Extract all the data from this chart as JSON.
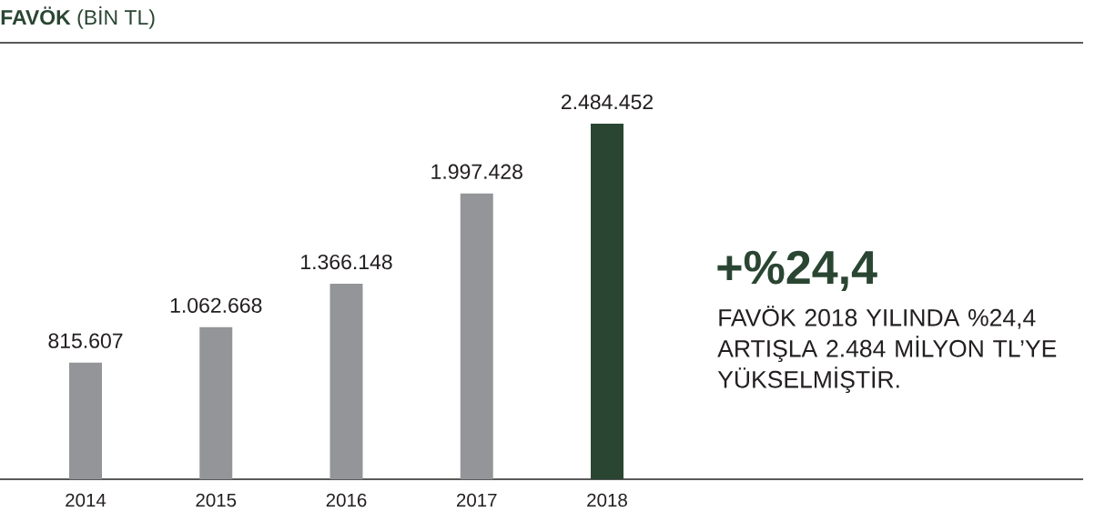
{
  "chart_data": {
    "type": "bar",
    "title": "**FAVÖK** (BİN TL)",
    "categories": [
      "2014",
      "2015",
      "2016",
      "2017",
      "2018"
    ],
    "values": [
      815607,
      1062668,
      1366148,
      1997428,
      2484452
    ],
    "colors": [
      "#939598",
      "#939598",
      "#939598",
      "#939598",
      "#2a4632"
    ],
    "value_labels": [
      "815.607",
      "1.062.668",
      "1.366.148",
      "1.997.428",
      "2.484.452"
    ],
    "annotations": [
      "+%24,4",
      "FAVÖK 2018 YILINDA %24,4 ARTIŞLA 2.484 MİLYON TL’YE YÜKSELMİŞTİR."
    ]
  }
}
